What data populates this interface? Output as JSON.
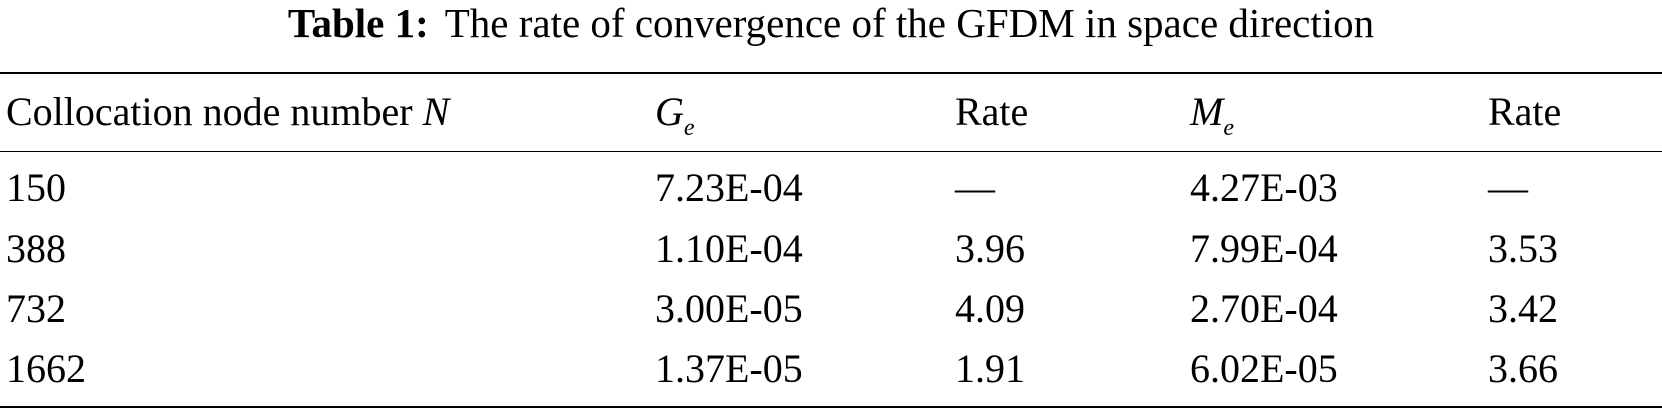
{
  "caption": {
    "label": "Table 1:",
    "text": "The rate of convergence of the GFDM in space direction"
  },
  "table": {
    "headers": {
      "node": {
        "text": "Collocation node number ",
        "var": "N"
      },
      "ge": {
        "base": "G",
        "sub": "e"
      },
      "rate1": "Rate",
      "me": {
        "base": "M",
        "sub": "e"
      },
      "rate2": "Rate"
    },
    "rows": [
      [
        "150",
        "7.23E-04",
        "—",
        "4.27E-03",
        "—"
      ],
      [
        "388",
        "1.10E-04",
        "3.96",
        "7.99E-04",
        "3.53"
      ],
      [
        "732",
        "3.00E-05",
        "4.09",
        "2.70E-04",
        "3.42"
      ],
      [
        "1662",
        "1.37E-05",
        "1.91",
        "6.02E-05",
        "3.66"
      ]
    ]
  }
}
